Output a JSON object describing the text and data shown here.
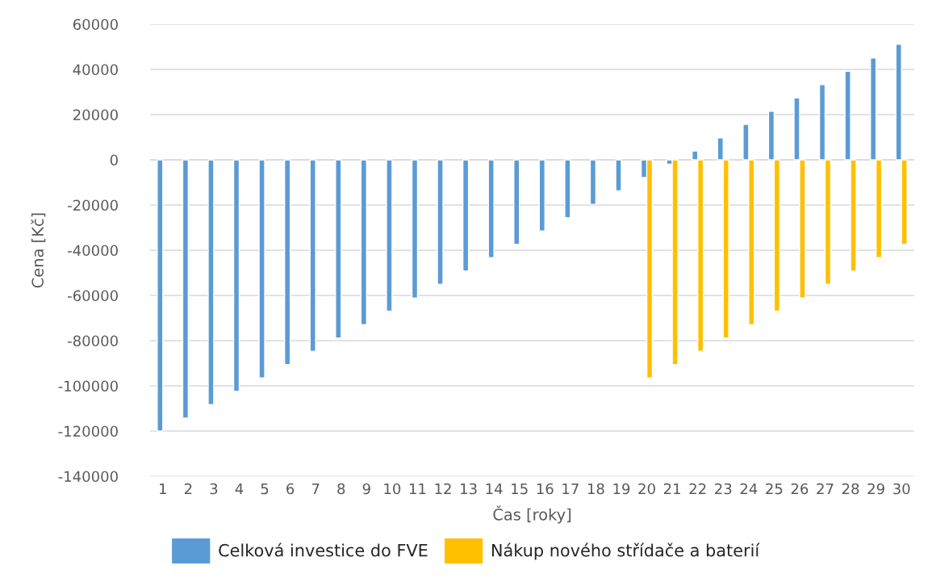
{
  "chart_data": {
    "type": "bar",
    "xlabel": "Čas [roky]",
    "ylabel": "Cena [Kč]",
    "categories": [
      "1",
      "2",
      "3",
      "4",
      "5",
      "6",
      "7",
      "8",
      "9",
      "10",
      "11",
      "12",
      "13",
      "14",
      "15",
      "16",
      "17",
      "18",
      "19",
      "20",
      "21",
      "22",
      "23",
      "24",
      "25",
      "26",
      "27",
      "28",
      "29",
      "30"
    ],
    "series": [
      {
        "name": "Celková investice do FVE",
        "color": "#5b9bd5",
        "values": [
          -120000,
          -114300,
          -108300,
          -102400,
          -96500,
          -90600,
          -84700,
          -78800,
          -72900,
          -66900,
          -61100,
          -55100,
          -49200,
          -43300,
          -37400,
          -31500,
          -25600,
          -19700,
          -13750,
          -7800,
          -1900,
          3900,
          9700,
          15700,
          21500,
          27400,
          33300,
          39200,
          45100,
          51100
        ]
      },
      {
        "name": "Nákup nového střídače a baterií",
        "color": "#ffc000",
        "values": [
          null,
          null,
          null,
          null,
          null,
          null,
          null,
          null,
          null,
          null,
          null,
          null,
          null,
          null,
          null,
          null,
          null,
          null,
          null,
          -96500,
          -90600,
          -84700,
          -78800,
          -72900,
          -66900,
          -61100,
          -55100,
          -49200,
          -43300,
          -37400
        ]
      }
    ],
    "ylim": [
      -140000,
      60000
    ],
    "yticks": [
      -140000,
      -120000,
      -100000,
      -80000,
      -60000,
      -40000,
      -20000,
      0,
      20000,
      40000,
      60000
    ],
    "grid": "y",
    "legend": "bottom"
  }
}
